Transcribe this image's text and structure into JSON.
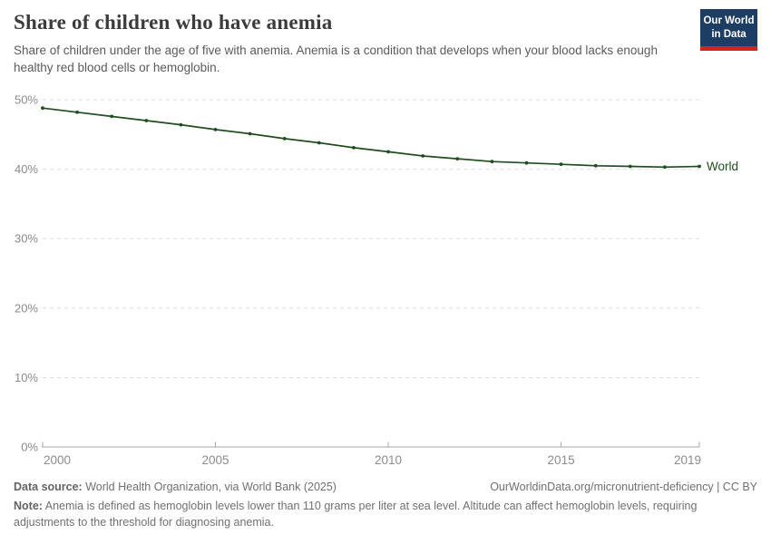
{
  "header": {
    "title": "Share of children who have anemia",
    "subtitle": "Share of children under the age of five with anemia. Anemia is a condition that develops when your blood lacks enough healthy red blood cells or hemoglobin."
  },
  "logo": {
    "line1": "Our World",
    "line2": "in Data",
    "bg_color": "#1d3d63",
    "stripe_color": "#cf2620"
  },
  "chart_data": {
    "type": "line",
    "title": "Share of children who have anemia",
    "xlabel": "",
    "ylabel": "",
    "x": [
      2000,
      2001,
      2002,
      2003,
      2004,
      2005,
      2006,
      2007,
      2008,
      2009,
      2010,
      2011,
      2012,
      2013,
      2014,
      2015,
      2016,
      2017,
      2018,
      2019
    ],
    "series": [
      {
        "name": "World",
        "color": "#1e4e1e",
        "values": [
          48.8,
          48.2,
          47.6,
          47.0,
          46.4,
          45.7,
          45.1,
          44.4,
          43.8,
          43.1,
          42.5,
          41.9,
          41.5,
          41.1,
          40.9,
          40.7,
          40.5,
          40.4,
          40.3,
          40.4
        ]
      }
    ],
    "ylim": [
      0,
      50
    ],
    "y_ticks": [
      0,
      10,
      20,
      30,
      40,
      50
    ],
    "y_tick_labels": [
      "0%",
      "10%",
      "20%",
      "30%",
      "40%",
      "50%"
    ],
    "x_ticks": [
      2000,
      2005,
      2010,
      2015,
      2019
    ],
    "grid": "horizontal dashed",
    "legend_position": "end-of-line label",
    "end_label": "World"
  },
  "footer": {
    "datasource_label": "Data source:",
    "datasource_text": " World Health Organization, via World Bank (2025)",
    "url_text": "OurWorldinData.org/micronutrient-deficiency | CC BY",
    "note_label": "Note:",
    "note_text": " Anemia is defined as hemoglobin levels lower than 110 grams per liter at sea level. Altitude can affect hemoglobin levels, requiring adjustments to the threshold for diagnosing anemia."
  },
  "colors": {
    "line": "#1e4e1e",
    "grid": "#dcdcdc",
    "axis": "#a6a6a6",
    "tick_label": "#8b8b8b",
    "title": "#3c3c3c",
    "subtitle": "#5a5a5a",
    "footer": "#707070"
  }
}
